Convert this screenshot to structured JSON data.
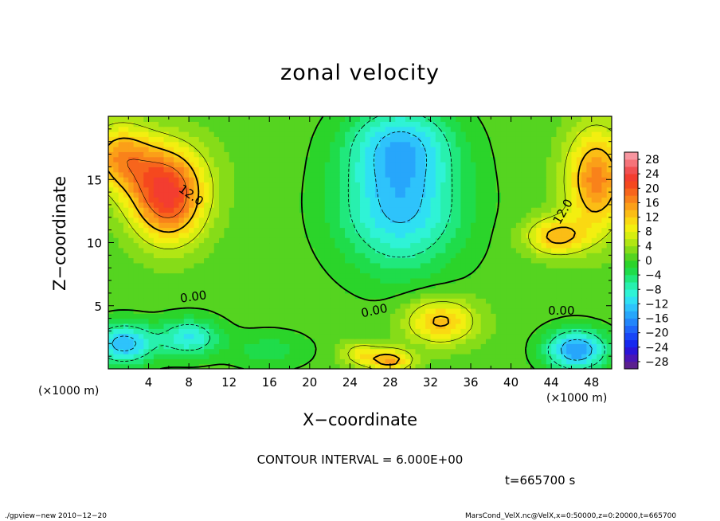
{
  "chart_data": {
    "type": "heatmap",
    "title": "zonal velocity",
    "xlabel": "X−coordinate",
    "ylabel": "Z−coordinate",
    "x_unit_left": "(×1000 m)",
    "x_unit_right": "(×1000 m)",
    "xlim": [
      0,
      50
    ],
    "ylim": [
      0,
      20
    ],
    "xticks": [
      {
        "value": 4,
        "label": "4"
      },
      {
        "value": 8,
        "label": "8"
      },
      {
        "value": 12,
        "label": "12"
      },
      {
        "value": 16,
        "label": "16"
      },
      {
        "value": 20,
        "label": "20"
      },
      {
        "value": 24,
        "label": "24"
      },
      {
        "value": 28,
        "label": "28"
      },
      {
        "value": 32,
        "label": "32"
      },
      {
        "value": 36,
        "label": "36"
      },
      {
        "value": 40,
        "label": "40"
      },
      {
        "value": 44,
        "label": "44"
      },
      {
        "value": 48,
        "label": "48"
      }
    ],
    "yticks": [
      {
        "value": 5,
        "label": "5"
      },
      {
        "value": 10,
        "label": "10"
      },
      {
        "value": 15,
        "label": "15"
      }
    ],
    "colorbar": {
      "levels": [
        -30,
        -28,
        -26,
        -24,
        -22,
        -20,
        -18,
        -16,
        -14,
        -12,
        -10,
        -8,
        -6,
        -4,
        -2,
        0,
        2,
        4,
        6,
        8,
        10,
        12,
        14,
        16,
        18,
        20,
        22,
        24,
        26,
        28,
        30
      ],
      "colors": [
        "#5b1f8f",
        "#4a15b5",
        "#2a14d8",
        "#1628ef",
        "#1846f7",
        "#1f66fa",
        "#2386fb",
        "#27a6fb",
        "#2ec3fb",
        "#2fe0f3",
        "#2ff3d6",
        "#28f0ae",
        "#20e87c",
        "#1fdc4a",
        "#2bd42a",
        "#55d420",
        "#86dc18",
        "#b1e614",
        "#d6ee10",
        "#f3ef10",
        "#fad912",
        "#fbbd15",
        "#fb9f18",
        "#f9821a",
        "#f7651c",
        "#f5481e",
        "#f33d30",
        "#f15052",
        "#f57379",
        "#f896a0"
      ],
      "tick_labels": [
        {
          "value": 28,
          "label": "28"
        },
        {
          "value": 24,
          "label": "24"
        },
        {
          "value": 20,
          "label": "20"
        },
        {
          "value": 16,
          "label": "16"
        },
        {
          "value": 12,
          "label": "12"
        },
        {
          "value": 8,
          "label": "8"
        },
        {
          "value": 4,
          "label": "4"
        },
        {
          "value": 0,
          "label": "0"
        },
        {
          "value": -4,
          "label": "−4"
        },
        {
          "value": -8,
          "label": "−8"
        },
        {
          "value": -12,
          "label": "−12"
        },
        {
          "value": -16,
          "label": "−16"
        },
        {
          "value": -20,
          "label": "−20"
        },
        {
          "value": -24,
          "label": "−24"
        },
        {
          "value": -28,
          "label": "−28"
        }
      ]
    },
    "contour_interval_text": "CONTOUR INTERVAL = 6.000E+00",
    "contour_labels": [
      {
        "text": "12.0",
        "x": 8,
        "y": 13.5,
        "rotation": 35
      },
      {
        "text": "0.00",
        "x": 8.5,
        "y": 5.4,
        "rotation": -8
      },
      {
        "text": "0.00",
        "x": 26.5,
        "y": 4.3,
        "rotation": -12
      },
      {
        "text": "12.0",
        "x": 45.5,
        "y": 12.3,
        "rotation": -60
      },
      {
        "text": "0.00",
        "x": 45,
        "y": 4.3,
        "rotation": 0
      }
    ],
    "field_features": [
      {
        "x": 6,
        "y": 13,
        "value": 17,
        "sx": 3.5,
        "sy": 3.2
      },
      {
        "x": 5,
        "y": 15.5,
        "value": 12,
        "sx": 4.5,
        "sy": 3
      },
      {
        "x": 1,
        "y": 17,
        "value": 12,
        "sx": 3,
        "sy": 2.5
      },
      {
        "x": 48.5,
        "y": 15,
        "value": 17,
        "sx": 3,
        "sy": 4
      },
      {
        "x": 44.5,
        "y": 10.5,
        "value": 13,
        "sx": 3,
        "sy": 1.5
      },
      {
        "x": 29,
        "y": 13,
        "value": -13,
        "sx": 6,
        "sy": 5
      },
      {
        "x": 29,
        "y": 18,
        "value": -9,
        "sx": 5,
        "sy": 3
      },
      {
        "x": 33,
        "y": 3.8,
        "value": 13,
        "sx": 3.5,
        "sy": 1.8
      },
      {
        "x": 28,
        "y": 0.7,
        "value": 14,
        "sx": 2.2,
        "sy": 0.9
      },
      {
        "x": 25,
        "y": 1.2,
        "value": 8,
        "sx": 2,
        "sy": 1
      },
      {
        "x": 46.5,
        "y": 1.5,
        "value": -16,
        "sx": 3,
        "sy": 1.6
      },
      {
        "x": 1.5,
        "y": 2,
        "value": -14,
        "sx": 3,
        "sy": 1.6
      },
      {
        "x": 8,
        "y": 2.5,
        "value": -10,
        "sx": 3,
        "sy": 1.5
      },
      {
        "x": 16,
        "y": 1.5,
        "value": -3,
        "sx": 4,
        "sy": 1.5
      }
    ],
    "field_background": 1,
    "time_text": "t=665700 s",
    "footer_left": "./gpview−new   2010−12−20",
    "footer_right": "MarsCond_VelX.nc@VelX,x=0:50000,z=0:20000,t=665700"
  }
}
